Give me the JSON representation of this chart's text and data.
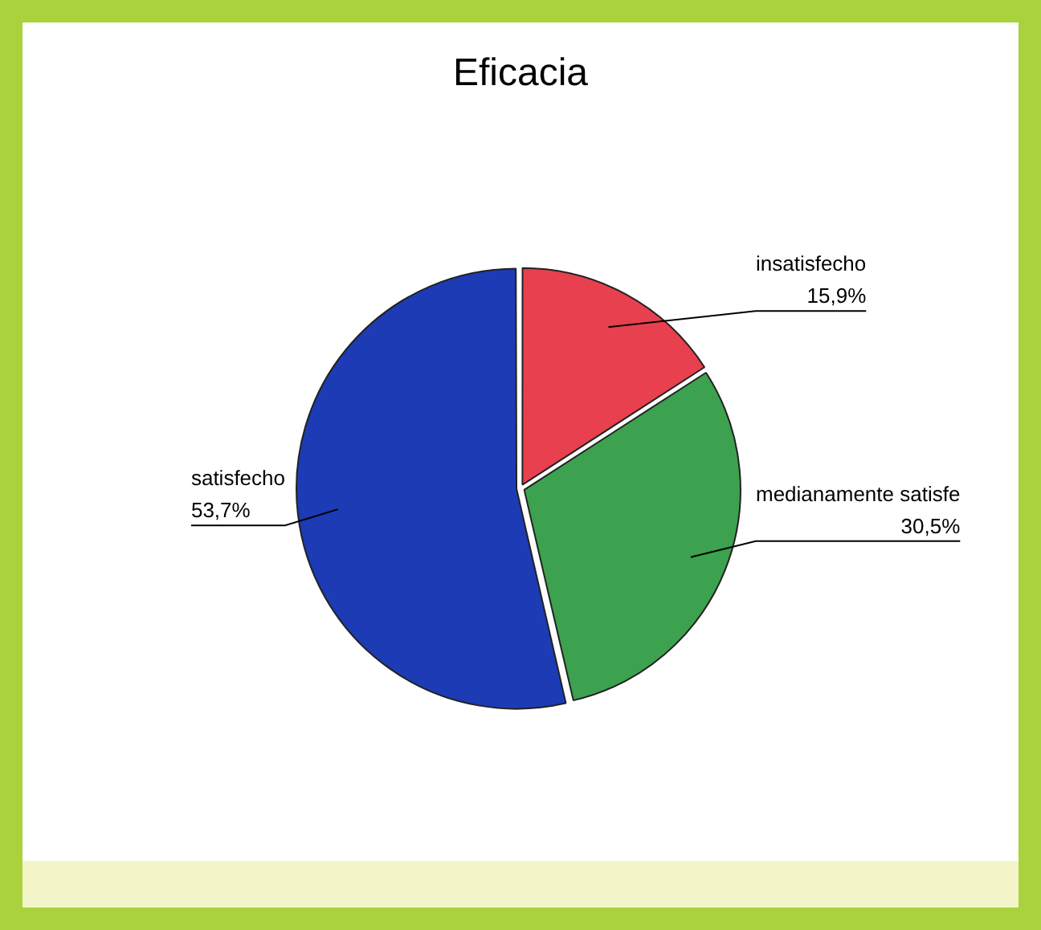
{
  "chart_data": {
    "type": "pie",
    "title": "Eficacia",
    "categories": [
      "insatisfecho",
      "medianamente satisfe",
      "satisfecho"
    ],
    "values": [
      15.9,
      30.5,
      53.7
    ],
    "value_labels": [
      "15,9%",
      "30,5%",
      "53,7%"
    ],
    "colors": [
      "#e8404f",
      "#3ca24f",
      "#1c3bb5"
    ]
  }
}
